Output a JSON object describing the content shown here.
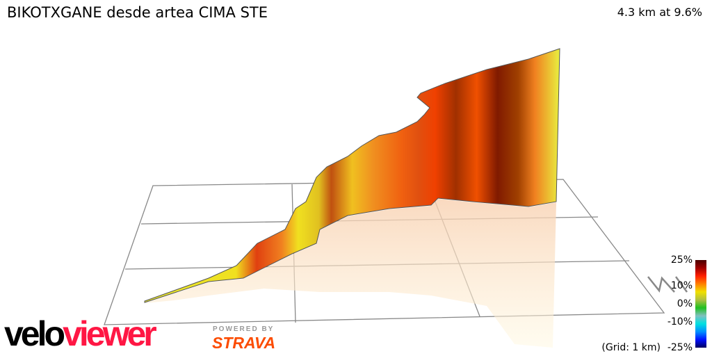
{
  "header": {
    "title": "BIKOTXGANE desde artea CIMA STE",
    "summary": "4.3 km at 9.6%"
  },
  "legend": {
    "ticks": [
      "25%",
      "10%",
      "0%",
      "-10%",
      "-25%"
    ],
    "grid_label": "(Grid: 1 km)"
  },
  "logos": {
    "brand_black": "velo",
    "brand_red": "viewer",
    "powered": "POWERED BY",
    "strava": "STRAVA"
  },
  "colors": {
    "brand_red": "#ff1744",
    "strava_orange": "#fc4c02",
    "gradient_high": "#7a1a00",
    "gradient_mid": "#ff6a00",
    "gradient_low": "#f0f020"
  },
  "chart_data": {
    "type": "area",
    "title": "BIKOTXGANE desde artea CIMA STE",
    "subtitle": "4.3 km at 9.6%",
    "style": "3D elevation profile colored by gradient",
    "colorscale": {
      "label_ticks": [
        "25%",
        "10%",
        "0%",
        "-10%",
        "-25%"
      ],
      "range": [
        -25,
        25
      ]
    },
    "grid": "1 km",
    "compass": "N"
  }
}
